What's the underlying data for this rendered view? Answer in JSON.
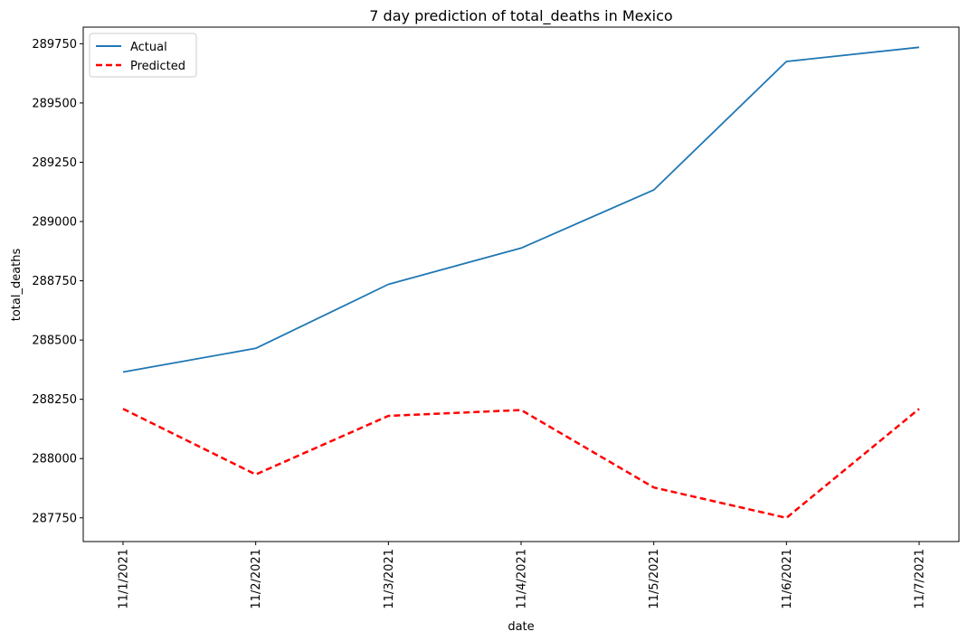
{
  "chart_data": {
    "type": "line",
    "title": "7 day prediction of total_deaths in Mexico",
    "xlabel": "date",
    "ylabel": "total_deaths",
    "categories": [
      "11/1/2021",
      "11/2/2021",
      "11/3/2021",
      "11/4/2021",
      "11/5/2021",
      "11/6/2021",
      "11/7/2021"
    ],
    "ylim": [
      287650,
      289820
    ],
    "yticks": [
      287750,
      288000,
      288250,
      288500,
      288750,
      289000,
      289250,
      289500,
      289750
    ],
    "grid": false,
    "legend_position": "top-left",
    "series": [
      {
        "name": "Actual",
        "color": "#1f77b4",
        "style": "solid",
        "values": [
          288365,
          288465,
          288735,
          288888,
          289133,
          289675,
          289735
        ]
      },
      {
        "name": "Predicted",
        "color": "#ff0000",
        "style": "dashed",
        "values": [
          288210,
          287933,
          288180,
          288205,
          287878,
          287750,
          288210
        ]
      }
    ]
  }
}
